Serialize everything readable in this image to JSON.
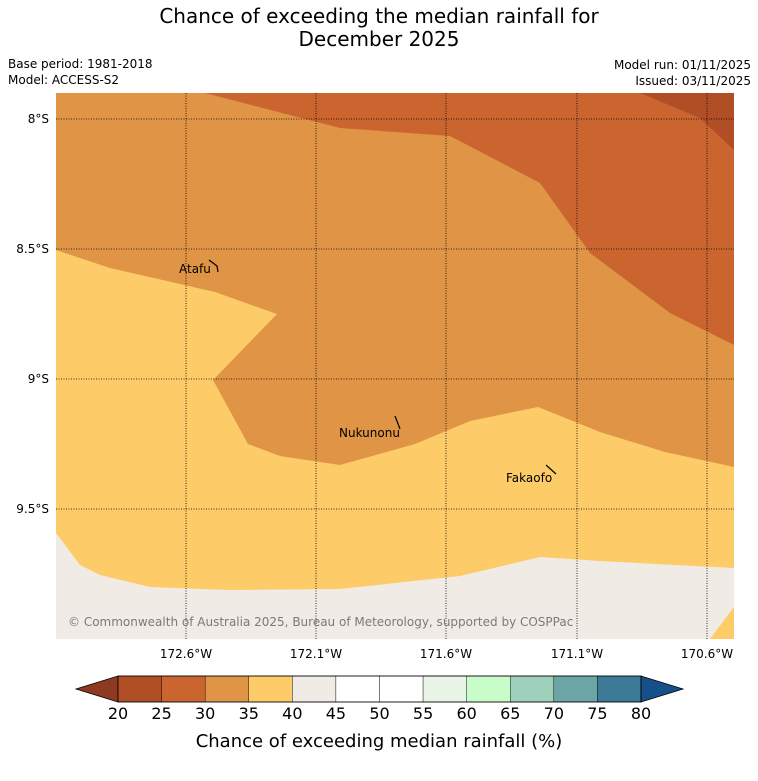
{
  "title_line1": "Chance of exceeding the median rainfall for",
  "title_line2": "December 2025",
  "base_period": "Base period: 1981-2018",
  "model": "Model: ACCESS-S2",
  "model_run": "Model run: 01/11/2025",
  "issued": "Issued: 03/11/2025",
  "copyright": "© Commonwealth of Australia 2025, Bureau of Meteorology, supported by COSPPac",
  "lat_labels": [
    "8°S",
    "8.5°S",
    "9°S",
    "9.5°S"
  ],
  "lon_labels": [
    "172.6°W",
    "172.1°W",
    "171.6°W",
    "171.1°W",
    "170.6°W"
  ],
  "places": [
    "Atafu",
    "Nukunonu",
    "Fakaofo"
  ],
  "colorbar": {
    "title": "Chance of exceeding median rainfall (%)",
    "ticks": [
      "20",
      "25",
      "30",
      "35",
      "40",
      "45",
      "50",
      "55",
      "60",
      "65",
      "70",
      "75",
      "80"
    ],
    "colors": [
      "#b04e25",
      "#cb6530",
      "#e09445",
      "#fdcb67",
      "#f0ebe5",
      "#ffffff",
      "#ffffff",
      "#e8f4e6",
      "#c8fcc8",
      "#9fd0bc",
      "#6ba5a6",
      "#3d7a98"
    ],
    "under_color": "#8e3a20",
    "over_color": "#165089"
  },
  "map_colors": {
    "c25": "#cb6530",
    "c30": "#e09445",
    "c35": "#fdcb67",
    "c40": "#f0ebe5",
    "c20": "#b04e25"
  }
}
